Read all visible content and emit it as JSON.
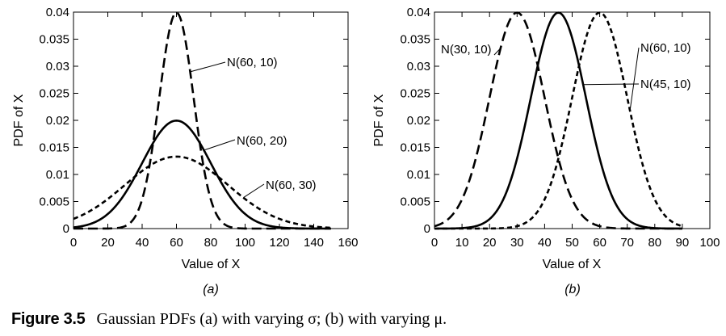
{
  "caption": {
    "number": "Figure 3.5",
    "text": "Gaussian PDFs (a) with varying σ; (b) with varying μ."
  },
  "chart_data": [
    {
      "type": "line",
      "panel_label": "(a)",
      "xlabel": "Value of X",
      "ylabel": "PDF of X",
      "xlim": [
        0,
        160
      ],
      "ylim": [
        0,
        0.04
      ],
      "xticks": [
        "0",
        "20",
        "40",
        "60",
        "80",
        "100",
        "120",
        "140",
        "160"
      ],
      "yticks": [
        "0",
        "0.005",
        "0.01",
        "0.015",
        "0.02",
        "0.025",
        "0.03",
        "0.035",
        "0.04"
      ],
      "x_range_plotted": [
        0,
        150
      ],
      "grid": false,
      "series": [
        {
          "name": "N(60, 10)",
          "mean": 60,
          "std": 10,
          "linestyle": "long-dash"
        },
        {
          "name": "N(60, 20)",
          "mean": 60,
          "std": 20,
          "linestyle": "solid"
        },
        {
          "name": "N(60, 30)",
          "mean": 60,
          "std": 30,
          "linestyle": "short-dash"
        }
      ]
    },
    {
      "type": "line",
      "panel_label": "(b)",
      "xlabel": "Value of X",
      "ylabel": "PDF of X",
      "xlim": [
        0,
        100
      ],
      "ylim": [
        0,
        0.04
      ],
      "xticks": [
        "0",
        "10",
        "20",
        "30",
        "40",
        "50",
        "60",
        "70",
        "80",
        "90",
        "100"
      ],
      "yticks": [
        "0",
        "0.005",
        "0.01",
        "0.015",
        "0.02",
        "0.025",
        "0.03",
        "0.035",
        "0.04"
      ],
      "x_range_plotted": [
        0,
        90
      ],
      "grid": false,
      "series": [
        {
          "name": "N(30, 10)",
          "mean": 30,
          "std": 10,
          "linestyle": "long-dash"
        },
        {
          "name": "N(45, 10)",
          "mean": 45,
          "std": 10,
          "linestyle": "solid"
        },
        {
          "name": "N(60, 10)",
          "mean": 60,
          "std": 10,
          "linestyle": "short-dash"
        }
      ]
    }
  ]
}
